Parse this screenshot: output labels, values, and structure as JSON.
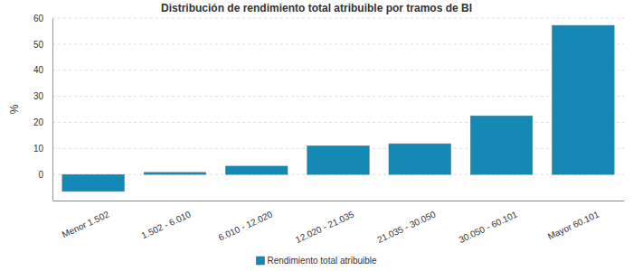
{
  "chart_data": {
    "type": "bar",
    "title": "Distribución de rendimiento total atribuible por tramos de BI",
    "y_label": "%",
    "categories": [
      "Menor 1.502",
      "1.502 - 6.010",
      "6.010 - 12.020",
      "12.020 - 21.035",
      "21.035 - 30.050",
      "30.050 - 60.101",
      "Mayor 60.101"
    ],
    "series": [
      {
        "name": "Rendimiento total atribuible",
        "color": "#1589b5",
        "values": [
          -6.5,
          0.8,
          3.2,
          11,
          11.8,
          22.5,
          57.2
        ]
      }
    ],
    "ylim": [
      -10,
      60
    ],
    "yticks": [
      0,
      10,
      20,
      30,
      40,
      50,
      60
    ],
    "grid": true,
    "legend": "bottom"
  }
}
